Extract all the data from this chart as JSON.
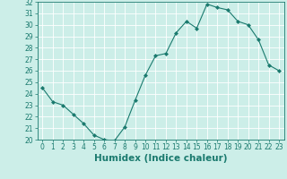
{
  "x": [
    0,
    1,
    2,
    3,
    4,
    5,
    6,
    7,
    8,
    9,
    10,
    11,
    12,
    13,
    14,
    15,
    16,
    17,
    18,
    19,
    20,
    21,
    22,
    23
  ],
  "y": [
    24.5,
    23.3,
    23.0,
    22.2,
    21.4,
    20.4,
    20.0,
    19.9,
    21.1,
    23.4,
    25.6,
    27.3,
    27.5,
    29.3,
    30.3,
    29.7,
    31.8,
    31.5,
    31.3,
    30.3,
    30.0,
    28.7,
    26.5,
    26.0
  ],
  "line_color": "#1a7a6e",
  "marker": "D",
  "marker_size": 2.0,
  "bg_color": "#cceee8",
  "grid_color": "#ffffff",
  "xlabel": "Humidex (Indice chaleur)",
  "ylim": [
    20,
    32
  ],
  "xlim": [
    -0.5,
    23.5
  ],
  "yticks": [
    20,
    21,
    22,
    23,
    24,
    25,
    26,
    27,
    28,
    29,
    30,
    31,
    32
  ],
  "xticks": [
    0,
    1,
    2,
    3,
    4,
    5,
    6,
    7,
    8,
    9,
    10,
    11,
    12,
    13,
    14,
    15,
    16,
    17,
    18,
    19,
    20,
    21,
    22,
    23
  ],
  "tick_label_fontsize": 5.5,
  "xlabel_fontsize": 7.5
}
